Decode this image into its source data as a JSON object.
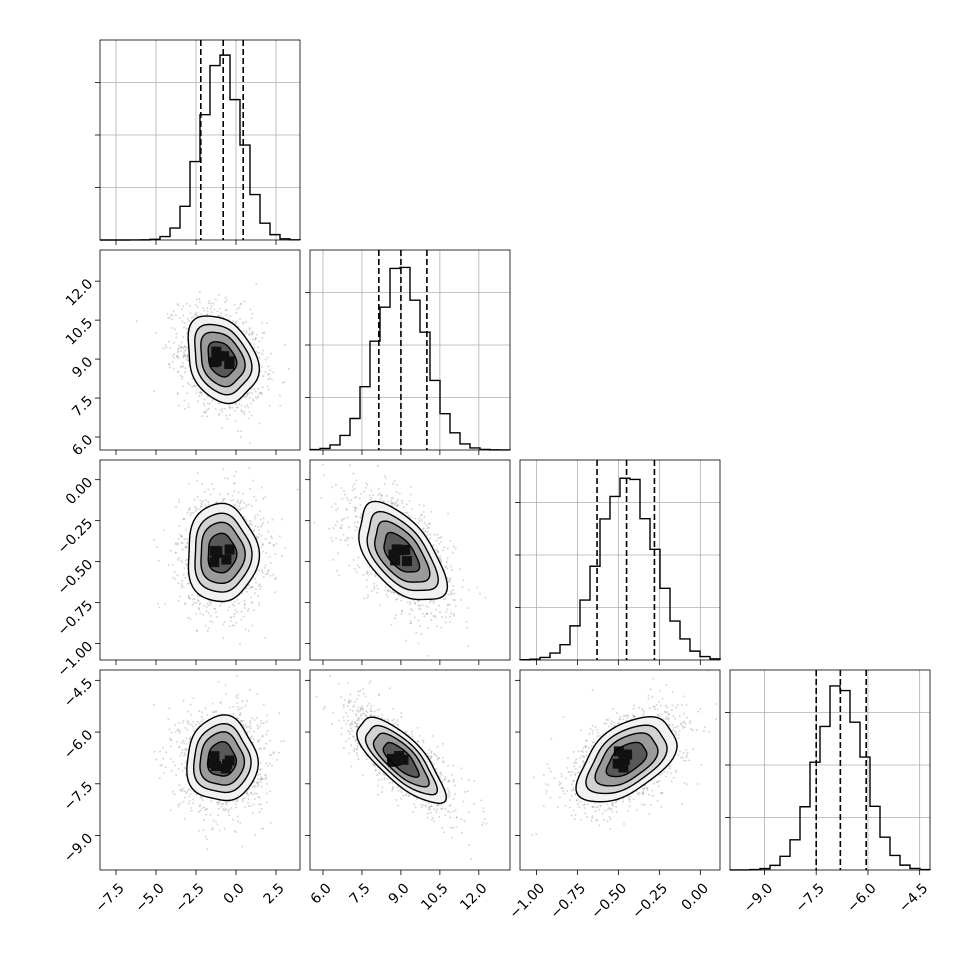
{
  "chart_data": {
    "type": "corner",
    "n_params": 4,
    "params": [
      {
        "range": [
          -8.5,
          4.0
        ],
        "ticks": [
          -7.5,
          -5.0,
          -2.5,
          0.0,
          2.5
        ],
        "tick_labels": [
          "−7.5",
          "−5.0",
          "−2.5",
          "0.0",
          "2.5"
        ],
        "mean": -0.9,
        "sd": 1.25,
        "quantiles": [
          -2.2,
          -0.8,
          0.45
        ]
      },
      {
        "range": [
          5.5,
          13.2
        ],
        "ticks": [
          6.0,
          7.5,
          9.0,
          10.5,
          12.0
        ],
        "tick_labels": [
          "6.0",
          "7.5",
          "9.0",
          "10.5",
          "12.0"
        ],
        "mean": 9.0,
        "sd": 0.95,
        "quantiles": [
          8.15,
          9.0,
          10.0
        ]
      },
      {
        "range": [
          -1.1,
          0.12
        ],
        "ticks": [
          -1.0,
          -0.75,
          -0.5,
          -0.25,
          0.0
        ],
        "tick_labels": [
          "−1.00",
          "−0.75",
          "−0.50",
          "−0.25",
          "0.00"
        ],
        "mean": -0.45,
        "sd": 0.17,
        "quantiles": [
          -0.63,
          -0.45,
          -0.28
        ]
      },
      {
        "range": [
          -10.0,
          -4.2
        ],
        "ticks": [
          -9.0,
          -7.5,
          -6.0,
          -4.5
        ],
        "tick_labels": [
          "−9.0",
          "−7.5",
          "−6.0",
          "−4.5"
        ],
        "mean": -6.8,
        "sd": 0.7,
        "quantiles": [
          -7.5,
          -6.8,
          -6.05
        ]
      }
    ],
    "correlations": [
      {
        "pair": [
          0,
          1
        ],
        "rho": -0.25
      },
      {
        "pair": [
          0,
          2
        ],
        "rho": 0.0
      },
      {
        "pair": [
          1,
          2
        ],
        "rho": -0.55
      },
      {
        "pair": [
          0,
          3
        ],
        "rho": 0.0
      },
      {
        "pair": [
          1,
          3
        ],
        "rho": -0.75
      },
      {
        "pair": [
          2,
          3
        ],
        "rho": 0.5
      }
    ],
    "grid": true,
    "colors": {
      "points": "#8c8c8c",
      "contour": "#000000",
      "density": "#000000",
      "grid": "#b0b0b0"
    }
  }
}
